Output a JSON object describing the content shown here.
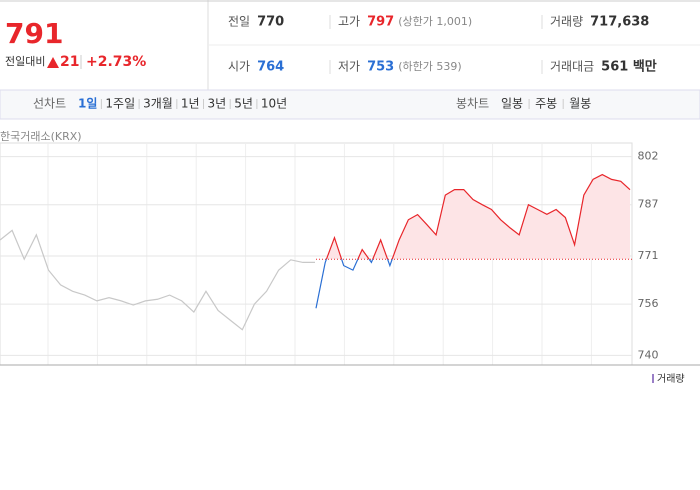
{
  "quote": {
    "price": "791",
    "change_label": "전일대비",
    "change": "21",
    "change_rate": "+2.73%"
  },
  "stats": [
    {
      "label": "전일",
      "value": "770"
    },
    {
      "label": "고가",
      "value": "797",
      "note": "(상한가 1,001)"
    },
    {
      "label": "거래량",
      "value": "717,638"
    },
    {
      "label": "시가",
      "value": "764"
    },
    {
      "label": "저가",
      "value": "753",
      "note": "(하한가 539)"
    },
    {
      "label": "거래대금",
      "value": "561 백만"
    }
  ],
  "tabs": {
    "line_label": "선차트",
    "line_periods": [
      "1일",
      "1주일",
      "3개월",
      "1년",
      "3년",
      "5년",
      "10년"
    ],
    "candle_label": "봉차트",
    "candle_periods": [
      "일봉",
      "주봉",
      "월봉"
    ]
  },
  "chart_data": {
    "type": "line",
    "source": "한국거래소(KRX)",
    "ylim": [
      737,
      805
    ],
    "yticks": [
      740,
      756,
      771,
      787,
      802
    ],
    "reference_line": 770,
    "previous_day": {
      "color": "#c8c8c8",
      "values": [
        776,
        779,
        770,
        777.6,
        766.6,
        762,
        760,
        758.8,
        757,
        758,
        757,
        755.7,
        757,
        757.5,
        758.8,
        757,
        753.5,
        760,
        754,
        751,
        748,
        756,
        760,
        766.6,
        769.8,
        769,
        769
      ]
    },
    "today": {
      "up_color": "#e8262b",
      "down_color": "#2a6fd4",
      "values": [
        754.7,
        769,
        776.7,
        768,
        766.6,
        773,
        769,
        776,
        768,
        776,
        782.3,
        783.9,
        780.8,
        777.6,
        790,
        791.7,
        791.7,
        788.6,
        787,
        785.5,
        782.3,
        779.8,
        777.6,
        787,
        785.5,
        784,
        785.5,
        783,
        774.5,
        790,
        794.9,
        796.4,
        794.9,
        794.3,
        791.7
      ]
    },
    "volume_label": "거래량"
  }
}
